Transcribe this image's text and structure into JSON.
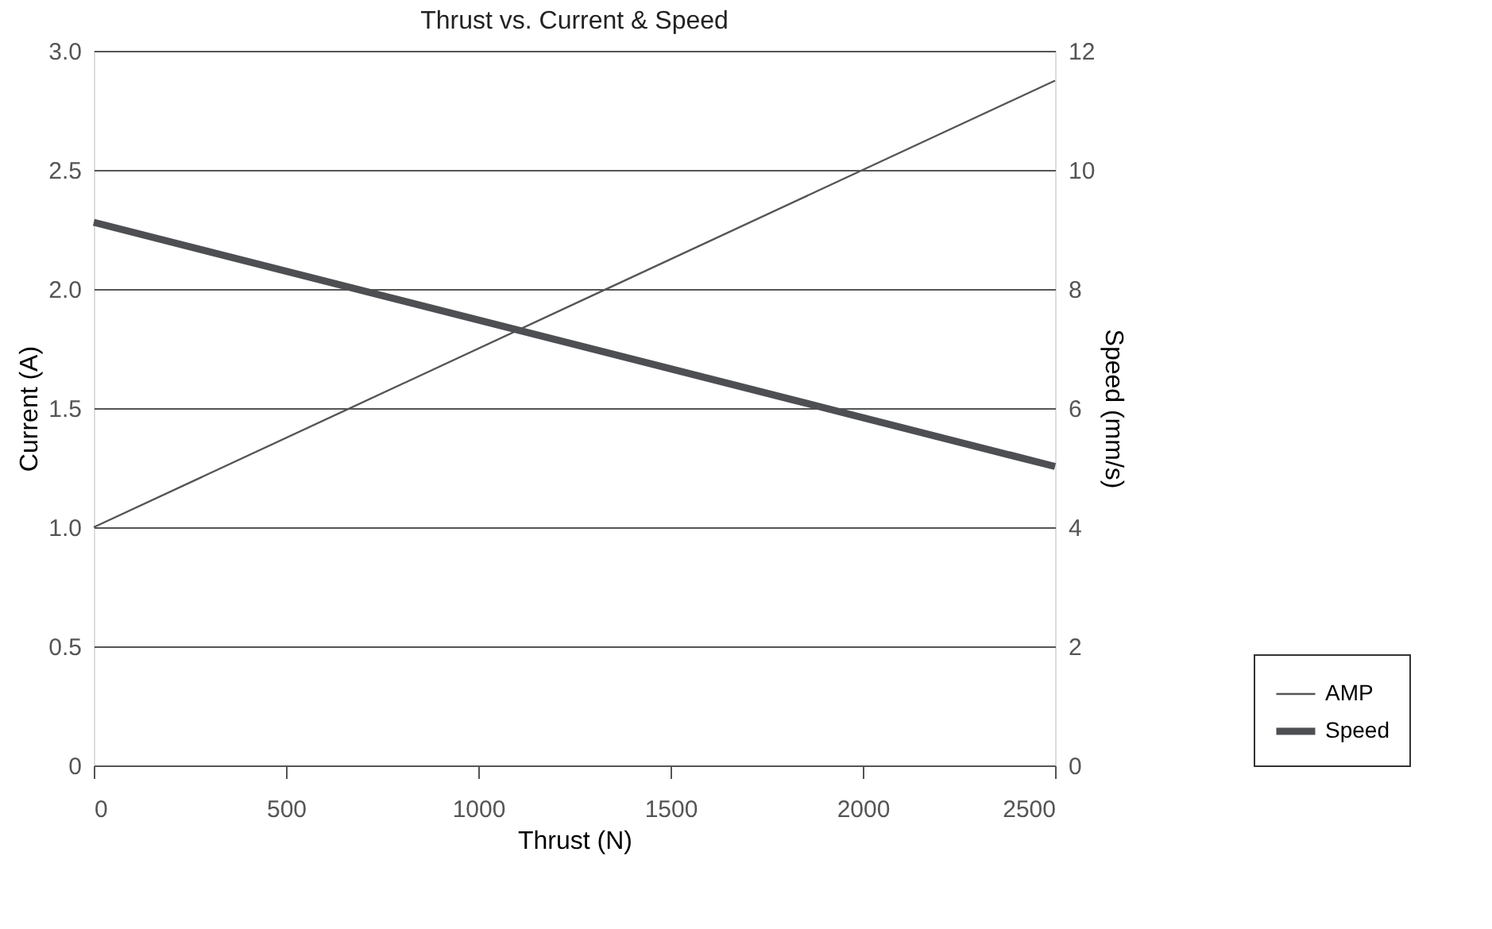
{
  "chart_data": {
    "type": "line",
    "title": "Thrust vs. Current & Speed",
    "xlabel": "Thrust (N)",
    "ylabel": "Current (A)",
    "y2label": "Speed (mm/s)",
    "x": [
      0,
      2500
    ],
    "series": [
      {
        "name": "AMP",
        "color": "#555555",
        "values": [
          1.0,
          2.875
        ]
      },
      {
        "name": "Speed",
        "color": "#4d4f53",
        "values": [
          9.12,
          5.02
        ],
        "axis": "y2"
      }
    ],
    "xlim": [
      0,
      2500
    ],
    "xticks": [
      0,
      500,
      1000,
      1500,
      2000,
      2500
    ],
    "ylim": [
      0,
      3.0
    ],
    "yticks": [
      0,
      {
        "value": 0.5,
        "label": "0.5"
      },
      {
        "value": 1,
        "label": "1.0"
      },
      {
        "value": 1.5,
        "label": "1.5"
      },
      {
        "value": 2,
        "label": "2.0"
      },
      {
        "value": 2.5,
        "label": "2.5"
      },
      {
        "value": 3,
        "label": "3.0"
      }
    ],
    "y2lim": [
      0,
      12
    ],
    "y2ticks": [
      0,
      2,
      4,
      6,
      8,
      10,
      12
    ],
    "grid": "y",
    "legend": "bottom right",
    "marker": "none",
    "line_style": "solid"
  }
}
